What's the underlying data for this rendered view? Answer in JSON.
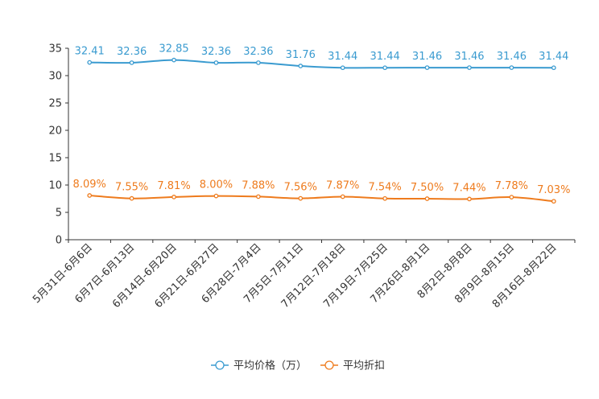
{
  "chart_data": {
    "type": "line",
    "title": "",
    "xlabel": "",
    "ylabel": "",
    "ylim": [
      0,
      35
    ],
    "yticks": [
      0,
      5,
      10,
      15,
      20,
      25,
      30,
      35
    ],
    "categories": [
      "5月31日-6月6日",
      "6月7日-6月13日",
      "6月14日-6月20日",
      "6月21日-6月27日",
      "6月28日-7月4日",
      "7月5日-7月11日",
      "7月12日-7月18日",
      "7月19日-7月25日",
      "7月26日-8月1日",
      "8月2日-8月8日",
      "8月9日-8月15日",
      "8月16日-8月22日"
    ],
    "legend_position": "bottom-center",
    "series": [
      {
        "name": "平均价格（万）",
        "color": "#3a9bd0",
        "values": [
          32.41,
          32.36,
          32.85,
          32.36,
          32.36,
          31.76,
          31.44,
          31.44,
          31.46,
          31.46,
          31.46,
          31.44
        ],
        "labels": [
          "32.41",
          "32.36",
          "32.85",
          "32.36",
          "32.36",
          "31.76",
          "31.44",
          "31.44",
          "31.46",
          "31.46",
          "31.46",
          "31.44"
        ]
      },
      {
        "name": "平均折扣",
        "color": "#ee7b1d",
        "values": [
          8.09,
          7.55,
          7.81,
          8.0,
          7.88,
          7.56,
          7.87,
          7.54,
          7.5,
          7.44,
          7.78,
          7.03
        ],
        "labels": [
          "8.09%",
          "7.55%",
          "7.81%",
          "8.00%",
          "7.88%",
          "7.56%",
          "7.87%",
          "7.54%",
          "7.50%",
          "7.44%",
          "7.78%",
          "7.03%"
        ]
      }
    ]
  }
}
